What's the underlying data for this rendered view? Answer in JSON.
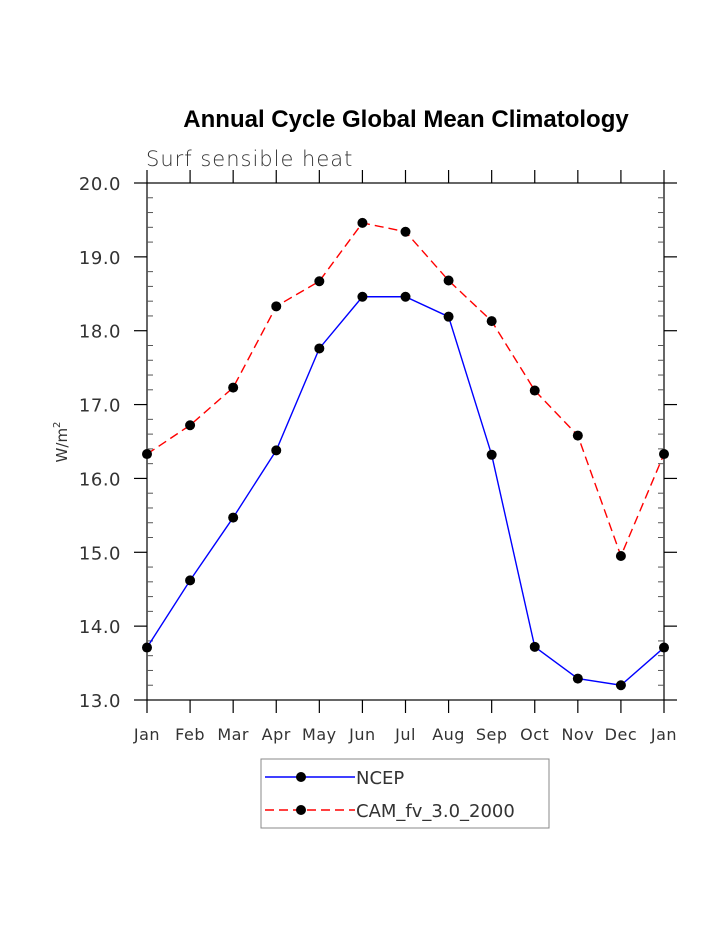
{
  "chart_data": {
    "type": "line",
    "title": "Annual Cycle Global Mean Climatology",
    "subtitle": "Surf sensible heat",
    "xlabel": "",
    "ylabel": "W/m",
    "ylabel_superscript": "2",
    "categories": [
      "Jan",
      "Feb",
      "Mar",
      "Apr",
      "May",
      "Jun",
      "Jul",
      "Aug",
      "Sep",
      "Oct",
      "Nov",
      "Dec",
      "Jan"
    ],
    "ylim": [
      13.0,
      20.0
    ],
    "yticks": [
      13.0,
      14.0,
      15.0,
      16.0,
      17.0,
      18.0,
      19.0,
      20.0
    ],
    "ytick_labels": [
      "13.0",
      "14.0",
      "15.0",
      "16.0",
      "17.0",
      "18.0",
      "19.0",
      "20.0"
    ],
    "yminor_step": 0.2,
    "grid": false,
    "legend_position": "bottom-center",
    "series": [
      {
        "name": "NCEP",
        "color": "#0000ff",
        "line_style": "solid",
        "marker": "filled-circle",
        "marker_color": "#000000",
        "values": [
          13.71,
          14.62,
          15.47,
          16.38,
          17.76,
          18.46,
          18.46,
          18.19,
          16.32,
          13.72,
          13.29,
          13.2,
          13.71
        ]
      },
      {
        "name": "CAM_fv_3.0_2000",
        "color": "#ff0000",
        "line_style": "dashed",
        "marker": "filled-circle",
        "marker_color": "#000000",
        "values": [
          16.33,
          16.72,
          17.23,
          18.33,
          18.67,
          19.46,
          19.34,
          18.68,
          18.13,
          17.19,
          16.58,
          14.95,
          16.33
        ]
      }
    ]
  }
}
